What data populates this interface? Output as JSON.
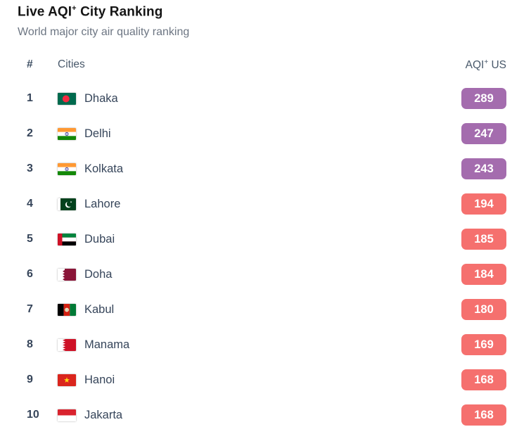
{
  "header": {
    "title_prefix": "Live AQI",
    "title_sup": "+",
    "title_suffix": " City Ranking",
    "subtitle": "World major city air quality ranking"
  },
  "table": {
    "columns": {
      "rank": "#",
      "city": "Cities",
      "aqi_prefix": "AQI",
      "aqi_sup": "+",
      "aqi_suffix": " US"
    },
    "rows": [
      {
        "rank": "1",
        "city": "Dhaka",
        "flag": "bangladesh",
        "aqi": "289",
        "level": "purple"
      },
      {
        "rank": "2",
        "city": "Delhi",
        "flag": "india",
        "aqi": "247",
        "level": "purple"
      },
      {
        "rank": "3",
        "city": "Kolkata",
        "flag": "india",
        "aqi": "243",
        "level": "purple"
      },
      {
        "rank": "4",
        "city": "Lahore",
        "flag": "pakistan",
        "aqi": "194",
        "level": "red"
      },
      {
        "rank": "5",
        "city": "Dubai",
        "flag": "uae",
        "aqi": "185",
        "level": "red"
      },
      {
        "rank": "6",
        "city": "Doha",
        "flag": "qatar",
        "aqi": "184",
        "level": "red"
      },
      {
        "rank": "7",
        "city": "Kabul",
        "flag": "afghanistan",
        "aqi": "180",
        "level": "red"
      },
      {
        "rank": "8",
        "city": "Manama",
        "flag": "bahrain",
        "aqi": "169",
        "level": "red"
      },
      {
        "rank": "9",
        "city": "Hanoi",
        "flag": "vietnam",
        "aqi": "168",
        "level": "red"
      },
      {
        "rank": "10",
        "city": "Jakarta",
        "flag": "indonesia",
        "aqi": "168",
        "level": "red"
      }
    ]
  },
  "colors": {
    "purple": "#a46cae",
    "red": "#f5706e"
  }
}
